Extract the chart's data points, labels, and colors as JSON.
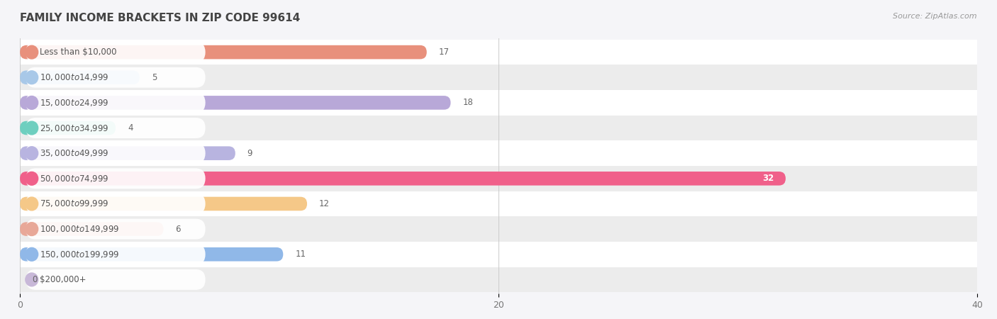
{
  "title": "FAMILY INCOME BRACKETS IN ZIP CODE 99614",
  "source": "Source: ZipAtlas.com",
  "categories": [
    "Less than $10,000",
    "$10,000 to $14,999",
    "$15,000 to $24,999",
    "$25,000 to $34,999",
    "$35,000 to $49,999",
    "$50,000 to $74,999",
    "$75,000 to $99,999",
    "$100,000 to $149,999",
    "$150,000 to $199,999",
    "$200,000+"
  ],
  "values": [
    17,
    5,
    18,
    4,
    9,
    32,
    12,
    6,
    11,
    0
  ],
  "bar_colors": [
    "#E8907C",
    "#A8C8E8",
    "#B8A8D8",
    "#6ECFBF",
    "#B8B4E0",
    "#F0608A",
    "#F5C888",
    "#E8A898",
    "#90B8E8",
    "#C8B8D8"
  ],
  "xlim": [
    0,
    40
  ],
  "xticks": [
    0,
    20,
    40
  ],
  "background_color": "#F5F5F8",
  "title_fontsize": 11,
  "label_fontsize": 8.5,
  "value_fontsize": 8.5,
  "bar_height": 0.55
}
